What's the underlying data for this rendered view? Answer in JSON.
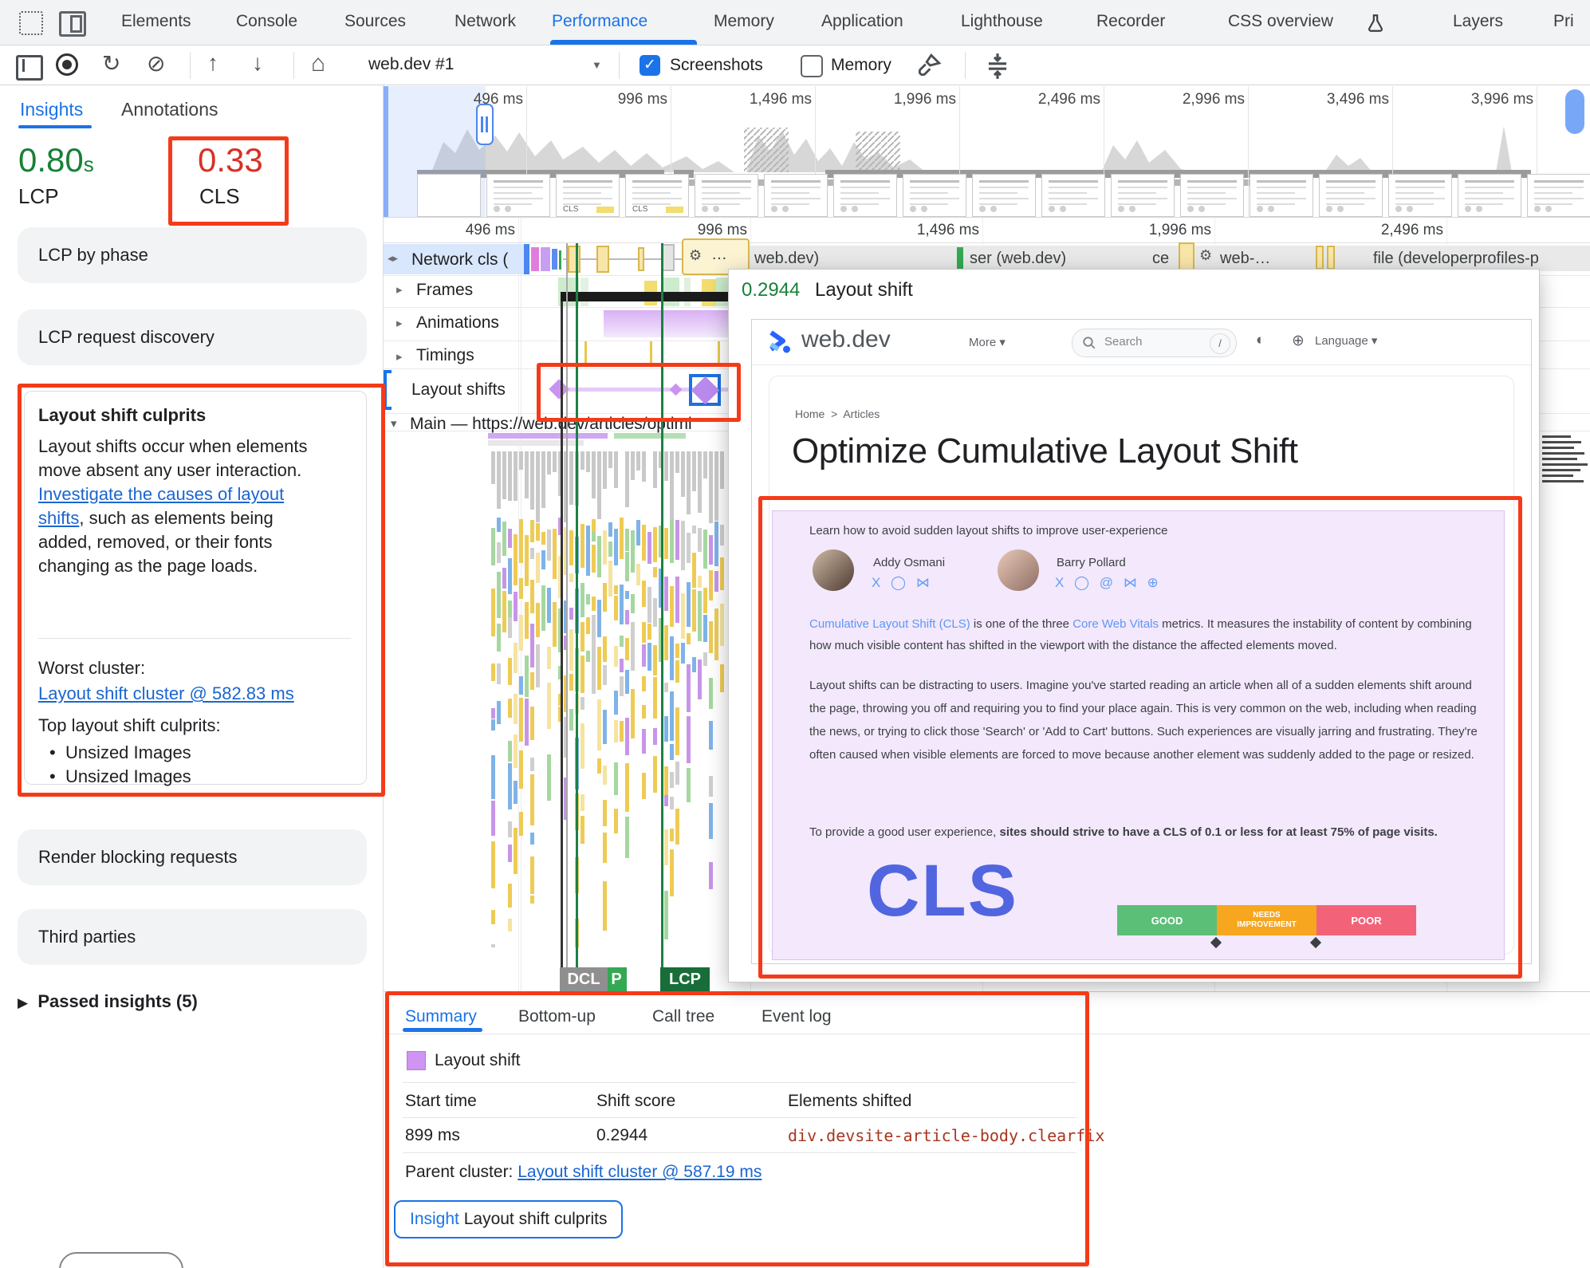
{
  "colors": {
    "accent_blue": "#1a73e8",
    "metric_green": "#188038",
    "metric_red": "#d93025",
    "annotation_red": "#f43b19",
    "layout_shift_purple": "#cb93f1",
    "element_link": "#a8361f",
    "lcp_badge_green": "#186d39",
    "marker_green": "#1d8045"
  },
  "icons": {
    "reload": "↻",
    "block": "⊘",
    "upload": "↑",
    "download": "↓",
    "home": "⌂",
    "caret_down": "▼",
    "check": "✓",
    "chevron_down": "▾",
    "tri_right": "▸",
    "tri_down": "▾",
    "track_arrows": "◂▸",
    "gear": "⚙",
    "bullet": "•",
    "mode": "◐",
    "globe": "⊕",
    "breadcrumb_sep": ">",
    "passed_tri": "▶"
  },
  "tabbar": {
    "tabs": [
      "Elements",
      "Console",
      "Sources",
      "Network",
      "Performance",
      "Memory",
      "Application",
      "Lighthouse",
      "Recorder",
      "CSS overview",
      "Layers",
      "Pri"
    ],
    "active": "Performance"
  },
  "toolbar": {
    "profile": "web.dev #1",
    "screenshots_label": "Screenshots",
    "screenshots_checked": true,
    "memory_label": "Memory",
    "memory_checked": false
  },
  "sidebar": {
    "tabs": [
      "Insights",
      "Annotations"
    ],
    "active_tab": "Insights",
    "metrics": {
      "lcp_value": "0.80",
      "lcp_unit": "s",
      "lcp_label": "LCP",
      "cls_value": "0.33",
      "cls_label": "CLS"
    },
    "cards_top": [
      "LCP by phase",
      "LCP request discovery"
    ],
    "culprits": {
      "title": "Layout shift culprits",
      "body_start": "Layout shifts occur when elements move absent any user interaction. ",
      "body_link": "Investigate the causes of layout shifts",
      "body_end": ", such as elements being added, removed, or their fonts changing as the page loads.",
      "worst_label": "Worst cluster:",
      "worst_link": "Layout shift cluster @ 582.83 ms",
      "top_label": "Top layout shift culprits:",
      "bullets": [
        "Unsized Images",
        "Unsized Images"
      ]
    },
    "cards_bottom": [
      "Render blocking requests",
      "Third parties"
    ],
    "passed_insights": "Passed insights (5)"
  },
  "overview": {
    "ticks": [
      "496 ms",
      "996 ms",
      "1,496 ms",
      "1,996 ms",
      "2,496 ms",
      "2,996 ms",
      "3,496 ms",
      "3,996 ms"
    ],
    "cls_label": "CLS"
  },
  "timeline": {
    "ticks": [
      "496 ms",
      "996 ms",
      "1,496 ms",
      "1,996 ms",
      "2,496 ms"
    ],
    "tracks": {
      "network": "Network cls (",
      "frames": "Frames",
      "animations": "Animations",
      "timings": "Timings",
      "layout_shifts": "Layout shifts",
      "main": "Main — https://web.dev/articles/optimi"
    },
    "network_labels": {
      "ellipsis": "…",
      "doc": "web.dev)",
      "ser": "ser (web.dev)",
      "ce": "ce",
      "gear2": "web-…",
      "file": "file (developerprofiles-p"
    },
    "markers": {
      "dcl": "DCL",
      "fp": "P",
      "lcp": "LCP"
    }
  },
  "popup": {
    "score": "0.2944",
    "title": "Layout shift",
    "page": {
      "brand": "web.dev",
      "more": "More",
      "search_placeholder": "Search",
      "search_key": "/",
      "language": "Language",
      "breadcrumb_home": "Home",
      "breadcrumb_articles": "Articles",
      "heading": "Optimize Cumulative Layout Shift",
      "hero": {
        "tagline": "Learn how to avoid sudden layout shifts to improve user-experience",
        "author1": "Addy Osmani",
        "author2": "Barry Pollard",
        "social_icons1": "X ◯ ⋈",
        "social_icons2": "X ◯ @ ⋈ ⊕",
        "p1_link1": "Cumulative Layout Shift (CLS)",
        "p1_mid": " is one of the three ",
        "p1_link2": "Core Web Vitals",
        "p1_end": " metrics. It measures the instability of content by combining how much visible content has shifted in the viewport with the distance the affected elements moved.",
        "p2": "Layout shifts can be distracting to users. Imagine you've started reading an article when all of a sudden elements shift around the page, throwing you off and requiring you to find your place again. This is very common on the web, including when reading the news, or trying to click those 'Search' or 'Add to Cart' buttons. Such experiences are visually jarring and frustrating. They're often caused when visible elements are forced to move because another element was suddenly added to the page or resized.",
        "p3_start": "To provide a good user experience, ",
        "p3_bold": "sites should strive to have a CLS of 0.1 or less for at least 75% of page visits.",
        "cls_art": "CLS",
        "rating_good": "GOOD",
        "rating_needs": "NEEDS IMPROVEMENT",
        "rating_poor": "POOR"
      }
    }
  },
  "bottom": {
    "tabs": [
      "Summary",
      "Bottom-up",
      "Call tree",
      "Event log"
    ],
    "active_tab": "Summary",
    "legend_label": "Layout shift",
    "table": {
      "headers": [
        "Start time",
        "Shift score",
        "Elements shifted"
      ],
      "row": {
        "start": "899 ms",
        "score": "0.2944",
        "element": "div.devsite-article-body.clearfix"
      }
    },
    "parent_label": "Parent cluster: ",
    "parent_link": "Layout shift cluster @ 587.19 ms",
    "insight_badge": "Insight",
    "insight_label": "Layout shift culprits"
  }
}
